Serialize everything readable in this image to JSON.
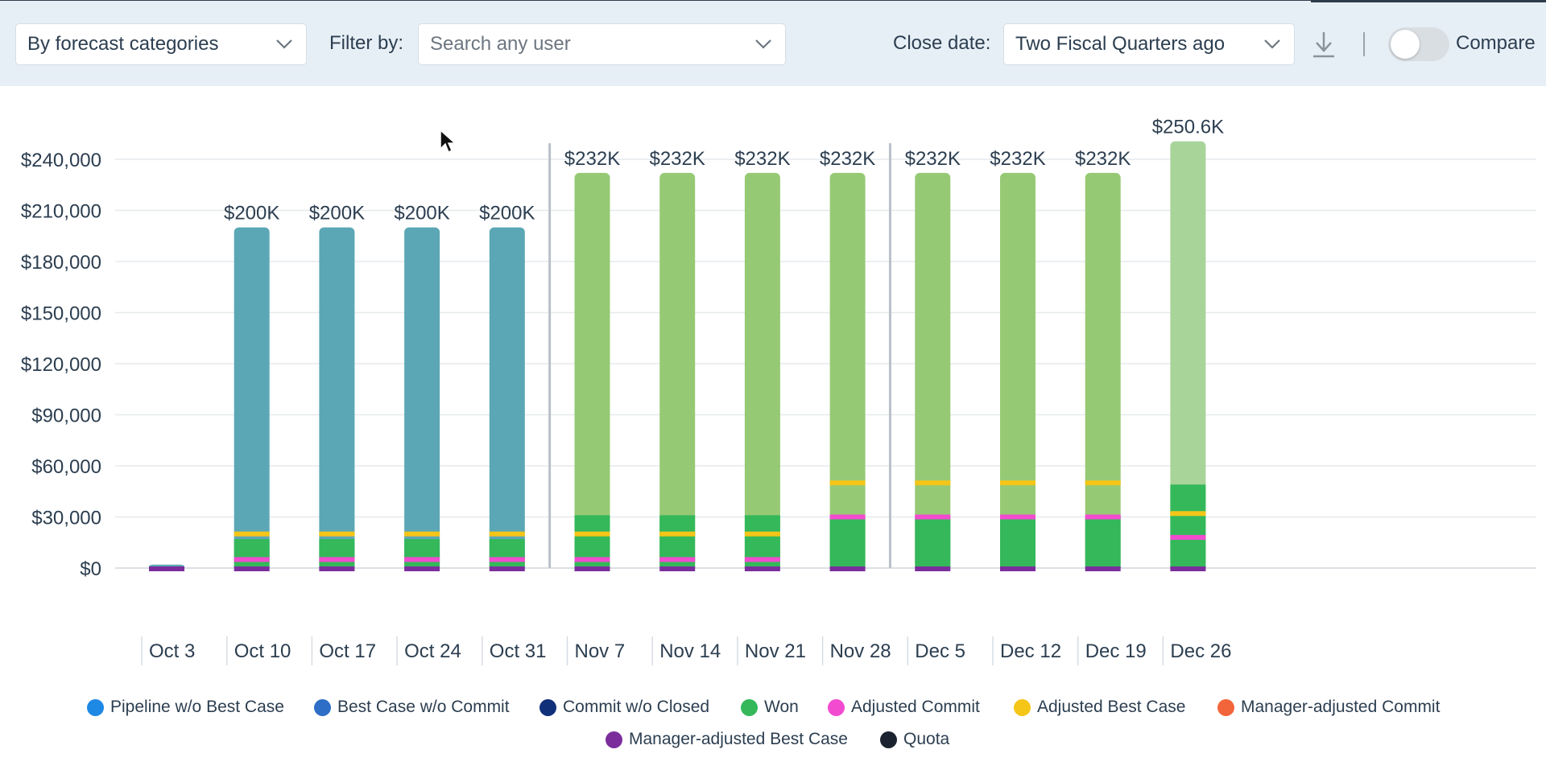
{
  "toolbar": {
    "group_by": "By forecast categories",
    "filter_label": "Filter by:",
    "filter_placeholder": "Search any user",
    "close_date_label": "Close date:",
    "close_date_value": "Two Fiscal Quarters ago",
    "compare_label": "Compare",
    "compare_on": false
  },
  "colors": {
    "toolbar_bg": "#e7eff6",
    "closed_bar": "#5ba7b5",
    "won_bar": "#96c974",
    "current_bar": "#a8d49a",
    "won": "#34b85a",
    "adjusted_commit": "#f24bd0",
    "adjusted_best_case": "#f5c518",
    "manager_adjusted_best_case": "#7b2d9c"
  },
  "chart_data": {
    "type": "bar",
    "stacked": true,
    "ylim": [
      0,
      240000
    ],
    "yticks": [
      "$0",
      "$30,000",
      "$60,000",
      "$90,000",
      "$120,000",
      "$150,000",
      "$180,000",
      "$210,000",
      "$240,000"
    ],
    "grid": true,
    "legend_position": "bottom",
    "categories": [
      "Oct 3",
      "Oct 10",
      "Oct 17",
      "Oct 24",
      "Oct 31",
      "Nov 7",
      "Nov 14",
      "Nov 21",
      "Nov 28",
      "Dec 5",
      "Dec 12",
      "Dec 19",
      "Dec 26"
    ],
    "totals": [
      2000,
      200000,
      200000,
      200000,
      200000,
      232000,
      232000,
      232000,
      232000,
      232000,
      232000,
      232000,
      250600
    ],
    "total_labels": [
      "",
      "$200K",
      "$200K",
      "$200K",
      "$200K",
      "$232K",
      "$232K",
      "$232K",
      "$232K",
      "$232K",
      "$232K",
      "$232K",
      "$250.6K"
    ],
    "won": [
      0,
      17000,
      17000,
      17000,
      17000,
      31000,
      31000,
      31000,
      30000,
      30000,
      30000,
      30000,
      49000
    ],
    "adjusted_commit_marker": [
      null,
      5000,
      5000,
      5000,
      5000,
      5000,
      5000,
      5000,
      30000,
      30000,
      30000,
      30000,
      18000
    ],
    "adjusted_best_case_marker": [
      null,
      20000,
      20000,
      20000,
      20000,
      20000,
      20000,
      20000,
      50000,
      50000,
      50000,
      50000,
      32000
    ],
    "manager_adjusted_best_case_marker": [
      0,
      0,
      0,
      0,
      0,
      0,
      0,
      0,
      0,
      0,
      0,
      0,
      0
    ],
    "period_dividers_after": [
      "Oct 31",
      "Nov 28"
    ],
    "legend": [
      {
        "name": "Pipeline w/o Best Case",
        "color": "#1e88e5"
      },
      {
        "name": "Best Case w/o Commit",
        "color": "#2f6ec6"
      },
      {
        "name": "Commit w/o Closed",
        "color": "#10307a"
      },
      {
        "name": "Won",
        "color": "#34b85a"
      },
      {
        "name": "Adjusted Commit",
        "color": "#f24bd0"
      },
      {
        "name": "Adjusted Best Case",
        "color": "#f5c518"
      },
      {
        "name": "Manager-adjusted Commit",
        "color": "#f2653a"
      },
      {
        "name": "Manager-adjusted Best Case",
        "color": "#7b2d9c"
      },
      {
        "name": "Quota",
        "color": "#1c2330"
      }
    ]
  }
}
